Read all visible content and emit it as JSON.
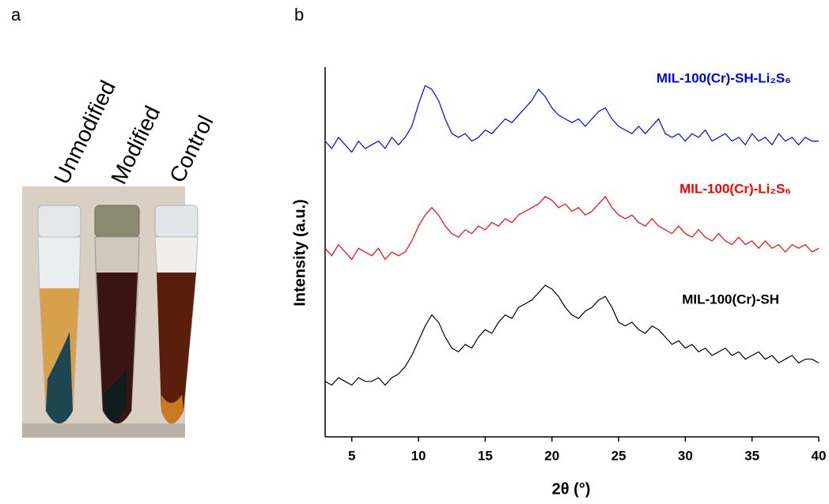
{
  "panel_labels": [
    "a",
    "b"
  ],
  "photo_labels": [
    "Unmodified",
    "Modified",
    "Control"
  ],
  "chart_data": {
    "type": "line",
    "xlabel": "2θ (°)",
    "ylabel": "Intensity (a.u.)",
    "xlim": [
      3,
      40
    ],
    "xticks": [
      5,
      10,
      15,
      20,
      25,
      30,
      35,
      40
    ],
    "ylim": [
      0,
      100
    ],
    "x": [
      3,
      3.5,
      4,
      4.5,
      5,
      5.5,
      6,
      6.5,
      7,
      7.5,
      8,
      8.5,
      9,
      9.5,
      10,
      10.5,
      11,
      11.5,
      12,
      12.5,
      13,
      13.5,
      14,
      14.5,
      15,
      15.5,
      16,
      16.5,
      17,
      17.5,
      18,
      18.5,
      19,
      19.5,
      20,
      20.5,
      21,
      21.5,
      22,
      22.5,
      23,
      23.5,
      24,
      24.5,
      25,
      25.5,
      26,
      26.5,
      27,
      27.5,
      28,
      28.5,
      29,
      29.5,
      30,
      30.5,
      31,
      31.5,
      32,
      32.5,
      33,
      33.5,
      34,
      34.5,
      35,
      35.5,
      36,
      36.5,
      37,
      37.5,
      38,
      38.5,
      39,
      39.5,
      40
    ],
    "series": [
      {
        "name": "MIL-100(Cr)-SH-Li₂S₆",
        "color": "#0000ff",
        "values": [
          80,
          78,
          81,
          79,
          77,
          80,
          78,
          79,
          80,
          78,
          81,
          79,
          81,
          84,
          90,
          95,
          94,
          91,
          86,
          82,
          81,
          82,
          80,
          81,
          83,
          82,
          84,
          86,
          85,
          87,
          89,
          91,
          94,
          92,
          89,
          87,
          86,
          85,
          86,
          84,
          86,
          88,
          89,
          86,
          84,
          83,
          82,
          84,
          82,
          84,
          86,
          82,
          81,
          82,
          80,
          82,
          81,
          83,
          80,
          81,
          82,
          80,
          81,
          79,
          82,
          80,
          81,
          79,
          82,
          80,
          81,
          79,
          81,
          80,
          80
        ]
      },
      {
        "name": "MIL-100(Cr)-Li₂S₆",
        "color": "#ff0000",
        "values": [
          51,
          49,
          52,
          50,
          48,
          51,
          50,
          49,
          51,
          48,
          50,
          49,
          50,
          53,
          57,
          60,
          62,
          60,
          57,
          55,
          54,
          56,
          55,
          57,
          56,
          58,
          57,
          59,
          58,
          60,
          61,
          62,
          63,
          65,
          64,
          62,
          63,
          61,
          62,
          60,
          61,
          63,
          65,
          62,
          60,
          59,
          60,
          58,
          57,
          59,
          57,
          56,
          55,
          57,
          55,
          54,
          56,
          54,
          53,
          55,
          53,
          52,
          54,
          52,
          53,
          51,
          53,
          51,
          52,
          50,
          52,
          51,
          52,
          50,
          51
        ]
      },
      {
        "name": "MIL-100(Cr)-SH",
        "color": "#000000",
        "values": [
          15,
          14,
          16,
          15,
          14,
          16,
          15,
          15,
          16,
          14,
          16,
          17,
          19,
          22,
          26,
          30,
          33,
          31,
          27,
          24,
          23,
          25,
          24,
          27,
          29,
          28,
          31,
          33,
          32,
          35,
          36,
          37,
          39,
          41,
          40,
          38,
          35,
          33,
          32,
          34,
          35,
          37,
          38,
          35,
          31,
          30,
          31,
          29,
          28,
          30,
          29,
          27,
          25,
          26,
          24,
          25,
          23,
          24,
          22,
          23,
          24,
          22,
          23,
          21,
          22,
          23,
          21,
          22,
          20,
          21,
          22,
          20,
          21,
          21,
          20
        ]
      }
    ]
  }
}
